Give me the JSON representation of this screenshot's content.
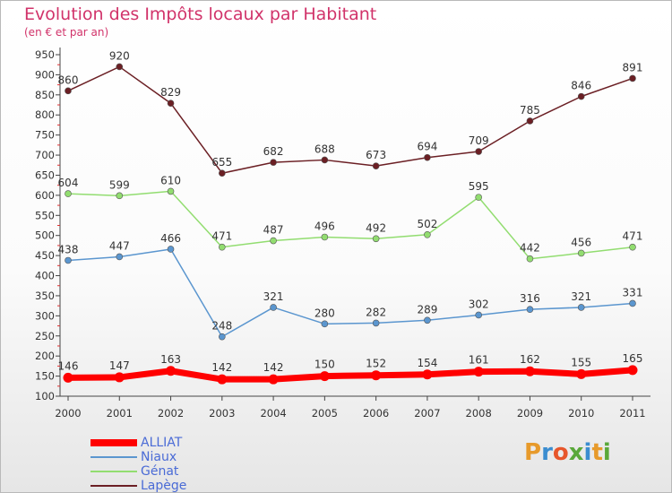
{
  "header": {
    "title": "Evolution des Impôts locaux par Habitant",
    "subtitle": "(en € et par an)"
  },
  "logo": {
    "text": "Proxiti",
    "letters": [
      {
        "ch": "P",
        "color": "#e79a2b"
      },
      {
        "ch": "r",
        "color": "#3b8dd0"
      },
      {
        "ch": "o",
        "color": "#e7562b"
      },
      {
        "ch": "x",
        "color": "#5aa83a"
      },
      {
        "ch": "i",
        "color": "#3b8dd0"
      },
      {
        "ch": "t",
        "color": "#e79a2b"
      },
      {
        "ch": "i",
        "color": "#5aa83a"
      }
    ]
  },
  "chart_data": {
    "type": "line",
    "title": "Evolution des Impôts locaux par Habitant",
    "subtitle": "(en € et par an)",
    "xlabel": "",
    "ylabel": "",
    "categories": [
      "2000",
      "2001",
      "2002",
      "2003",
      "2004",
      "2005",
      "2006",
      "2007",
      "2008",
      "2009",
      "2010",
      "2011"
    ],
    "ylim": [
      100,
      950
    ],
    "yticks": [
      100,
      150,
      200,
      250,
      300,
      350,
      400,
      450,
      500,
      550,
      600,
      650,
      700,
      750,
      800,
      850,
      900,
      950
    ],
    "grid": false,
    "legend_position": "bottom-left",
    "series": [
      {
        "name": "ALLIAT",
        "color": "#ff0000",
        "values": [
          146,
          147,
          163,
          142,
          142,
          150,
          152,
          154,
          161,
          162,
          155,
          165
        ]
      },
      {
        "name": "Niaux",
        "color": "#5b96cf",
        "values": [
          438,
          447,
          466,
          248,
          321,
          280,
          282,
          289,
          302,
          316,
          321,
          331
        ]
      },
      {
        "name": "Génat",
        "color": "#92dd70",
        "values": [
          604,
          599,
          610,
          471,
          487,
          496,
          492,
          502,
          595,
          442,
          456,
          471
        ]
      },
      {
        "name": "Lapège",
        "color": "#6b1f24",
        "values": [
          860,
          920,
          829,
          655,
          682,
          688,
          673,
          694,
          709,
          785,
          846,
          891
        ]
      }
    ]
  }
}
